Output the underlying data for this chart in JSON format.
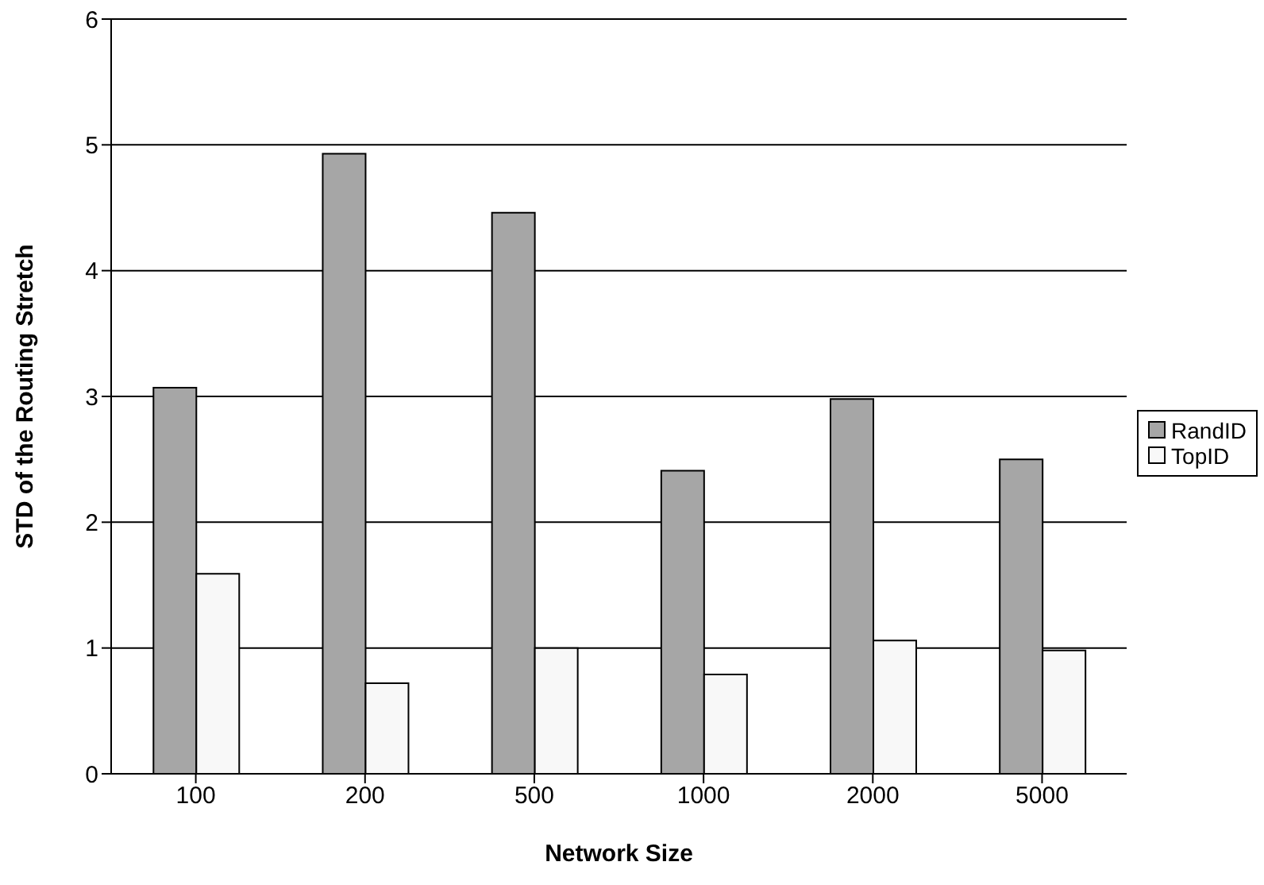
{
  "chart_data": {
    "type": "bar",
    "xlabel": "Network Size",
    "ylabel": "STD of the Routing Stretch",
    "categories": [
      "100",
      "200",
      "500",
      "1000",
      "2000",
      "5000"
    ],
    "series": [
      {
        "name": "RandID",
        "color": "#a6a6a6",
        "values": [
          3.07,
          4.93,
          4.46,
          2.41,
          2.98,
          2.5
        ]
      },
      {
        "name": "TopID",
        "color": "#f8f8f8",
        "values": [
          1.59,
          0.72,
          1.0,
          0.79,
          1.06,
          0.98
        ]
      }
    ],
    "ylim": [
      0,
      6
    ],
    "yticks": [
      0,
      1,
      2,
      3,
      4,
      5,
      6
    ],
    "grid": "y",
    "legend": "right"
  }
}
